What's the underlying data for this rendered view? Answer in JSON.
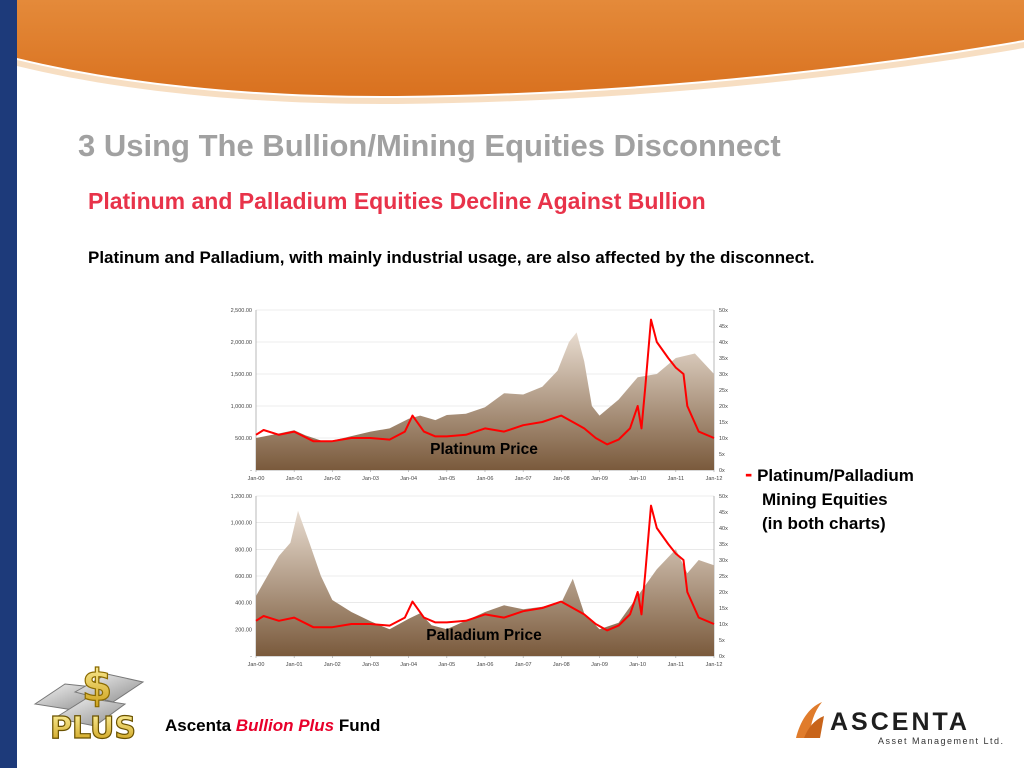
{
  "slide": {
    "title": "3  Using The Bullion/Mining Equities Disconnect",
    "subtitle": "Platinum and Palladium Equities Decline Against Bullion",
    "intro": "Platinum and Palladium, with mainly industrial usage, are also affected by the disconnect."
  },
  "legend": {
    "marker": "-",
    "line1": "Platinum/Palladium",
    "line2": "Mining Equities",
    "line3": "(in both charts)"
  },
  "footer": {
    "fund_prefix": "Ascenta ",
    "fund_emph": "Bullion Plus",
    "fund_suffix": " Fund",
    "logo_tag": "PLUS",
    "logo_symbol": "$",
    "company_name": "ASCENTA",
    "company_tagline": "Asset Management Ltd."
  },
  "colors": {
    "banner_orange": "#e07c2c",
    "left_bar_navy": "#1d3a7a",
    "title_gray": "#a1a1a1",
    "subtitle_red": "#e8334a",
    "series_line_red": "#ff0000",
    "area_top": "#e8dcd0",
    "area_bottom": "#7a5a3c"
  },
  "chart_data": [
    {
      "type": "area",
      "annotation": "Platinum Price",
      "x_ticks": [
        "Jan-00",
        "Jan-01",
        "Jan-02",
        "Jan-03",
        "Jan-04",
        "Jan-05",
        "Jan-06",
        "Jan-07",
        "Jan-08",
        "Jan-09",
        "Jan-10",
        "Jan-11",
        "Jan-12"
      ],
      "y_left_ticks": [
        "-",
        "500.00",
        "1,000.00",
        "1,500.00",
        "2,000.00",
        "2,500.00"
      ],
      "y_left_lim": [
        0,
        2500
      ],
      "y_right_ticks": [
        "0x",
        "5x",
        "10x",
        "15x",
        "20x",
        "25x",
        "30x",
        "35x",
        "40x",
        "45x",
        "50x"
      ],
      "y_right_lim": [
        0,
        50
      ],
      "series": [
        {
          "axis": "left",
          "style": "area",
          "x": [
            2000.0,
            2000.5,
            2001.0,
            2001.3,
            2001.8,
            2002.0,
            2002.5,
            2003.0,
            2003.5,
            2004.0,
            2004.3,
            2004.7,
            2005.0,
            2005.5,
            2006.0,
            2006.5,
            2007.0,
            2007.5,
            2007.9,
            2008.2,
            2008.4,
            2008.6,
            2008.8,
            2009.0,
            2009.5,
            2010.0,
            2010.5,
            2011.0,
            2011.5,
            2012.0
          ],
          "y": [
            500,
            560,
            620,
            540,
            440,
            460,
            530,
            600,
            650,
            800,
            850,
            780,
            860,
            880,
            980,
            1200,
            1180,
            1300,
            1550,
            2000,
            2150,
            1700,
            1000,
            850,
            1100,
            1450,
            1500,
            1750,
            1820,
            1500
          ]
        },
        {
          "axis": "right",
          "style": "line",
          "x": [
            2000.0,
            2000.2,
            2000.6,
            2001.0,
            2001.5,
            2002.0,
            2002.5,
            2003.0,
            2003.5,
            2003.9,
            2004.1,
            2004.4,
            2004.7,
            2005.0,
            2005.5,
            2006.0,
            2006.5,
            2007.0,
            2007.5,
            2008.0,
            2008.3,
            2008.6,
            2008.9,
            2009.2,
            2009.5,
            2009.8,
            2010.0,
            2010.1,
            2010.2,
            2010.35,
            2010.5,
            2010.8,
            2011.0,
            2011.2,
            2011.3,
            2011.6,
            2012.0
          ],
          "y": [
            11,
            12.5,
            11,
            12,
            9,
            9,
            10,
            10,
            9.5,
            12,
            17,
            12,
            10.5,
            10.5,
            11,
            13,
            12,
            14,
            15,
            17,
            15,
            13,
            10,
            8,
            9.5,
            13,
            20,
            13,
            26,
            47,
            40,
            35,
            32,
            30,
            20,
            12,
            10
          ]
        }
      ]
    },
    {
      "type": "area",
      "annotation": "Palladium Price",
      "x_ticks": [
        "Jan-00",
        "Jan-01",
        "Jan-02",
        "Jan-03",
        "Jan-04",
        "Jan-05",
        "Jan-06",
        "Jan-07",
        "Jan-08",
        "Jan-09",
        "Jan-10",
        "Jan-11",
        "Jan-12"
      ],
      "y_left_ticks": [
        "-",
        "200.00",
        "400.00",
        "600.00",
        "800.00",
        "1,000.00",
        "1,200.00"
      ],
      "y_left_lim": [
        0,
        1200
      ],
      "y_right_ticks": [
        "0x",
        "5x",
        "10x",
        "15x",
        "20x",
        "25x",
        "30x",
        "35x",
        "40x",
        "45x",
        "50x"
      ],
      "y_right_lim": [
        0,
        50
      ],
      "series": [
        {
          "axis": "left",
          "style": "area",
          "x": [
            2000.0,
            2000.3,
            2000.6,
            2000.9,
            2001.1,
            2001.4,
            2001.7,
            2002.0,
            2002.5,
            2003.0,
            2003.5,
            2004.0,
            2004.3,
            2004.6,
            2005.0,
            2006.0,
            2006.5,
            2007.0,
            2007.5,
            2008.0,
            2008.3,
            2008.6,
            2009.0,
            2009.5,
            2010.0,
            2010.5,
            2011.0,
            2011.3,
            2011.6,
            2012.0
          ],
          "y": [
            450,
            600,
            750,
            850,
            1090,
            850,
            600,
            420,
            330,
            260,
            200,
            280,
            320,
            230,
            200,
            330,
            380,
            350,
            370,
            400,
            580,
            320,
            200,
            250,
            450,
            650,
            800,
            620,
            720,
            680
          ]
        },
        {
          "axis": "right",
          "style": "line",
          "x": [
            2000.0,
            2000.2,
            2000.6,
            2001.0,
            2001.5,
            2002.0,
            2002.5,
            2003.0,
            2003.5,
            2003.9,
            2004.1,
            2004.4,
            2004.7,
            2005.0,
            2005.5,
            2006.0,
            2006.5,
            2007.0,
            2007.5,
            2008.0,
            2008.3,
            2008.6,
            2008.9,
            2009.2,
            2009.5,
            2009.8,
            2010.0,
            2010.1,
            2010.2,
            2010.35,
            2010.5,
            2010.8,
            2011.0,
            2011.2,
            2011.3,
            2011.6,
            2012.0
          ],
          "y": [
            11,
            12.5,
            11,
            12,
            9,
            9,
            10,
            10,
            9.5,
            12,
            17,
            12,
            10.5,
            10.5,
            11,
            13,
            12,
            14,
            15,
            17,
            15,
            13,
            10,
            8,
            9.5,
            13,
            20,
            13,
            26,
            47,
            40,
            35,
            32,
            30,
            20,
            12,
            10
          ]
        }
      ]
    }
  ]
}
